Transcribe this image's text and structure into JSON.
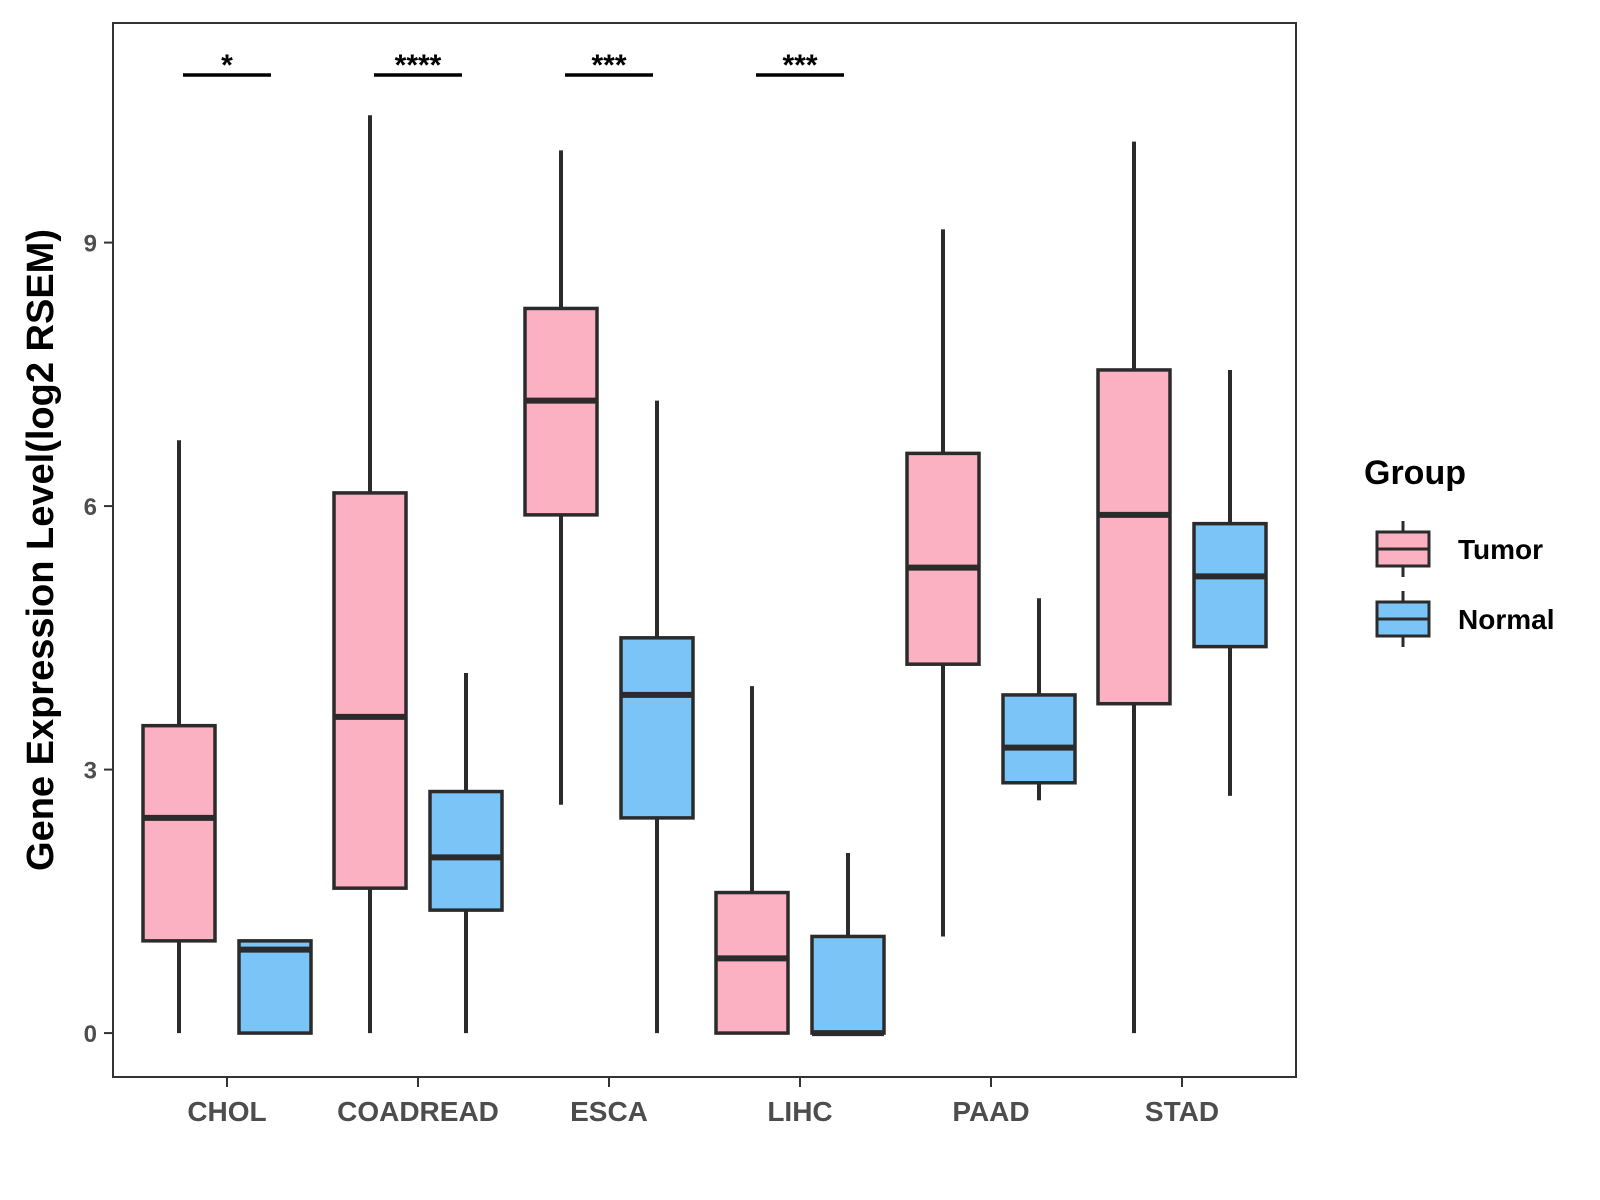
{
  "chart_data": {
    "type": "boxplot",
    "title": "",
    "xlabel": "",
    "ylabel": "Gene Expression Level(log2 RSEM)",
    "ylim": [
      -0.5,
      11.5
    ],
    "yticks": [
      0,
      3,
      6,
      9
    ],
    "grid": false,
    "categories": [
      "CHOL",
      "COADREAD",
      "ESCA",
      "LIHC",
      "PAAD",
      "STAD"
    ],
    "series": [
      {
        "name": "Tumor",
        "color": "#FBB1C1",
        "boxes": [
          {
            "min": 0.0,
            "q1": 1.05,
            "median": 2.45,
            "q3": 3.5,
            "max": 6.75
          },
          {
            "min": 0.0,
            "q1": 1.65,
            "median": 3.6,
            "q3": 6.15,
            "max": 10.45
          },
          {
            "min": 2.6,
            "q1": 5.9,
            "median": 7.2,
            "q3": 8.25,
            "max": 10.05
          },
          {
            "min": 0.0,
            "q1": 0.0,
            "median": 0.85,
            "q3": 1.6,
            "max": 3.95
          },
          {
            "min": 1.1,
            "q1": 4.2,
            "median": 5.3,
            "q3": 6.6,
            "max": 9.15
          },
          {
            "min": 0.0,
            "q1": 3.75,
            "median": 5.9,
            "q3": 7.55,
            "max": 10.15
          }
        ]
      },
      {
        "name": "Normal",
        "color": "#7BC4F8",
        "boxes": [
          {
            "min": 0.0,
            "q1": 0.0,
            "median": 0.95,
            "q3": 1.05,
            "max": 1.05
          },
          {
            "min": 0.0,
            "q1": 1.4,
            "median": 2.0,
            "q3": 2.75,
            "max": 4.1
          },
          {
            "min": 0.0,
            "q1": 2.45,
            "median": 3.85,
            "q3": 4.5,
            "max": 7.2
          },
          {
            "min": 0.0,
            "q1": 0.0,
            "median": 0.0,
            "q3": 1.1,
            "max": 2.05
          },
          {
            "min": 2.65,
            "q1": 2.85,
            "median": 3.25,
            "q3": 3.85,
            "max": 4.95
          },
          {
            "min": 2.7,
            "q1": 4.4,
            "median": 5.2,
            "q3": 5.8,
            "max": 7.55
          }
        ]
      }
    ],
    "significance": [
      "*",
      "****",
      "***",
      "***",
      "",
      ""
    ],
    "legend": {
      "title": "Group",
      "position": "right"
    }
  }
}
